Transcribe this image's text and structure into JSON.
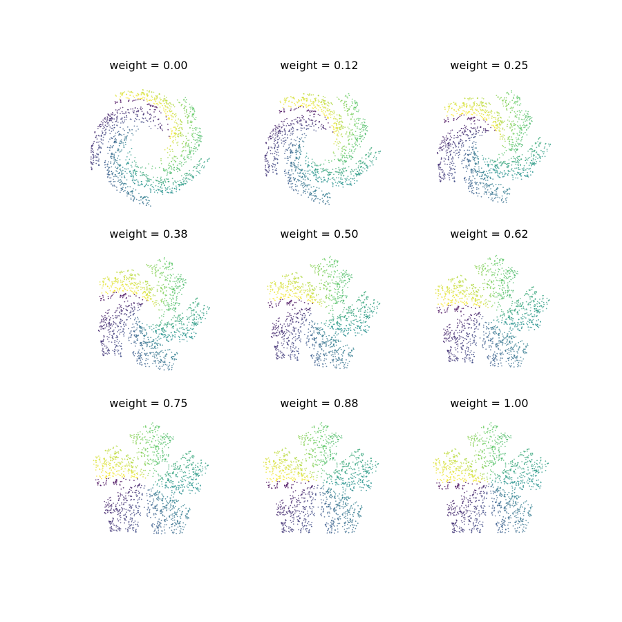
{
  "figure": {
    "background": "#ffffff",
    "colormap": "viridis",
    "colormap_stops": [
      "#440154",
      "#3b528b",
      "#21918c",
      "#5ec962",
      "#fde725"
    ],
    "axes_visible": false
  },
  "chart_data": [
    {
      "type": "scatter",
      "title": "weight = 0.00",
      "weight": 0.0,
      "marker": "small dots",
      "color_by": "viridis",
      "shape": "swirl of curved arcs around a small dark bow-tie center"
    },
    {
      "type": "scatter",
      "title": "weight = 0.12",
      "weight": 0.12,
      "marker": "small dots",
      "color_by": "viridis",
      "shape": "swirl of curved arcs around a small dark bow-tie center"
    },
    {
      "type": "scatter",
      "title": "weight = 0.25",
      "weight": 0.25,
      "marker": "small dots",
      "color_by": "viridis",
      "shape": "arcs opening into a partial ring, bow-tie shifting toward bottom"
    },
    {
      "type": "scatter",
      "title": "weight = 0.38",
      "weight": 0.38,
      "marker": "small dots",
      "color_by": "viridis",
      "shape": "open ring with pentagon clusters appearing at the bottom"
    },
    {
      "type": "scatter",
      "title": "weight = 0.50",
      "weight": 0.5,
      "marker": "small dots",
      "color_by": "viridis",
      "shape": "open ring, pentagon clusters along bottom-left"
    },
    {
      "type": "scatter",
      "title": "weight = 0.62",
      "weight": 0.62,
      "marker": "small dots",
      "color_by": "viridis",
      "shape": "ring of pentagon clusters with a spur at upper-left"
    },
    {
      "type": "scatter",
      "title": "weight = 0.75",
      "weight": 0.75,
      "marker": "small dots",
      "color_by": "viridis",
      "shape": "ring of pentagon flakes, small spur at upper-left"
    },
    {
      "type": "scatter",
      "title": "weight = 0.88",
      "weight": 0.88,
      "marker": "small dots",
      "color_by": "viridis",
      "shape": "five pentaflake clusters in a nearly closed ring"
    },
    {
      "type": "scatter",
      "title": "weight = 1.00",
      "weight": 1.0,
      "marker": "small dots",
      "color_by": "viridis",
      "shape": "closed pentaflake: five pentagon clusters in a ring"
    }
  ]
}
